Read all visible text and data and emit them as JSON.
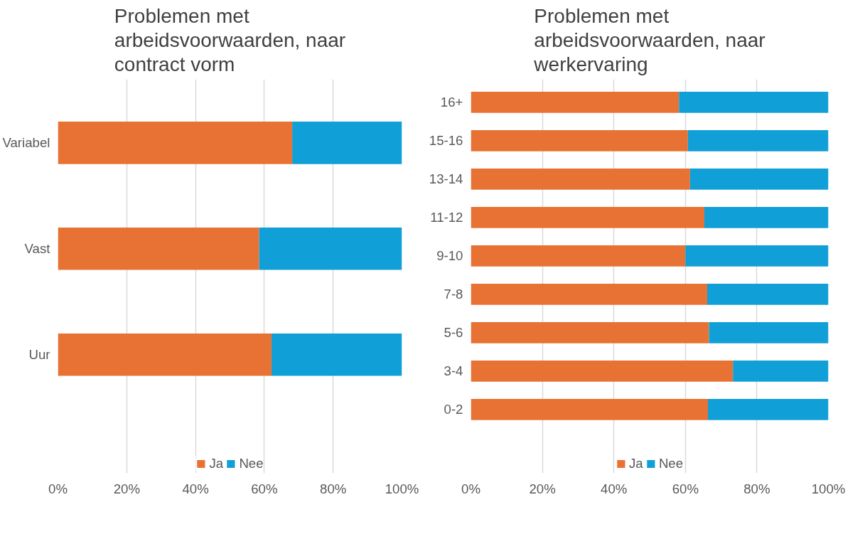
{
  "chart_data": [
    {
      "type": "bar",
      "orientation": "horizontal",
      "stacked": true,
      "title": "Problemen met arbeidsvoorwaarden, naar contract vorm",
      "categories": [
        "Variabel",
        "Vast",
        "Uur"
      ],
      "series": [
        {
          "name": "Ja",
          "color": "#e87234",
          "values": [
            68.1,
            58.5,
            62.1
          ]
        },
        {
          "name": "Nee",
          "color": "#109fd6",
          "values": [
            31.9,
            41.5,
            37.9
          ]
        }
      ],
      "xlim": [
        0,
        100
      ],
      "xticks": [
        {
          "value": 0,
          "label": "0%"
        },
        {
          "value": 20,
          "label": "20%"
        },
        {
          "value": 40,
          "label": "40%"
        },
        {
          "value": 60,
          "label": "60%"
        },
        {
          "value": 80,
          "label": "80%"
        },
        {
          "value": 100,
          "label": "100%"
        }
      ],
      "grid": "x",
      "legend": "bottom"
    },
    {
      "type": "bar",
      "orientation": "horizontal",
      "stacked": true,
      "title": "Problemen met arbeidsvoorwaarden, naar werkervaring",
      "categories": [
        "16+",
        "15-16",
        "13-14",
        "11-12",
        "9-10",
        "7-8",
        "5-6",
        "3-4",
        "0-2"
      ],
      "series": [
        {
          "name": "Ja",
          "color": "#e87234",
          "values": [
            58.2,
            60.7,
            61.3,
            65.3,
            60.0,
            66.1,
            66.6,
            73.3,
            66.3
          ]
        },
        {
          "name": "Nee",
          "color": "#109fd6",
          "values": [
            41.8,
            39.3,
            38.7,
            34.7,
            40.0,
            33.9,
            33.4,
            26.7,
            33.7
          ]
        }
      ],
      "xlim": [
        0,
        100
      ],
      "xticks": [
        {
          "value": 0,
          "label": "0%"
        },
        {
          "value": 20,
          "label": "20%"
        },
        {
          "value": 40,
          "label": "40%"
        },
        {
          "value": 60,
          "label": "60%"
        },
        {
          "value": 80,
          "label": "80%"
        },
        {
          "value": 100,
          "label": "100%"
        }
      ],
      "grid": "x",
      "legend": "bottom"
    }
  ]
}
